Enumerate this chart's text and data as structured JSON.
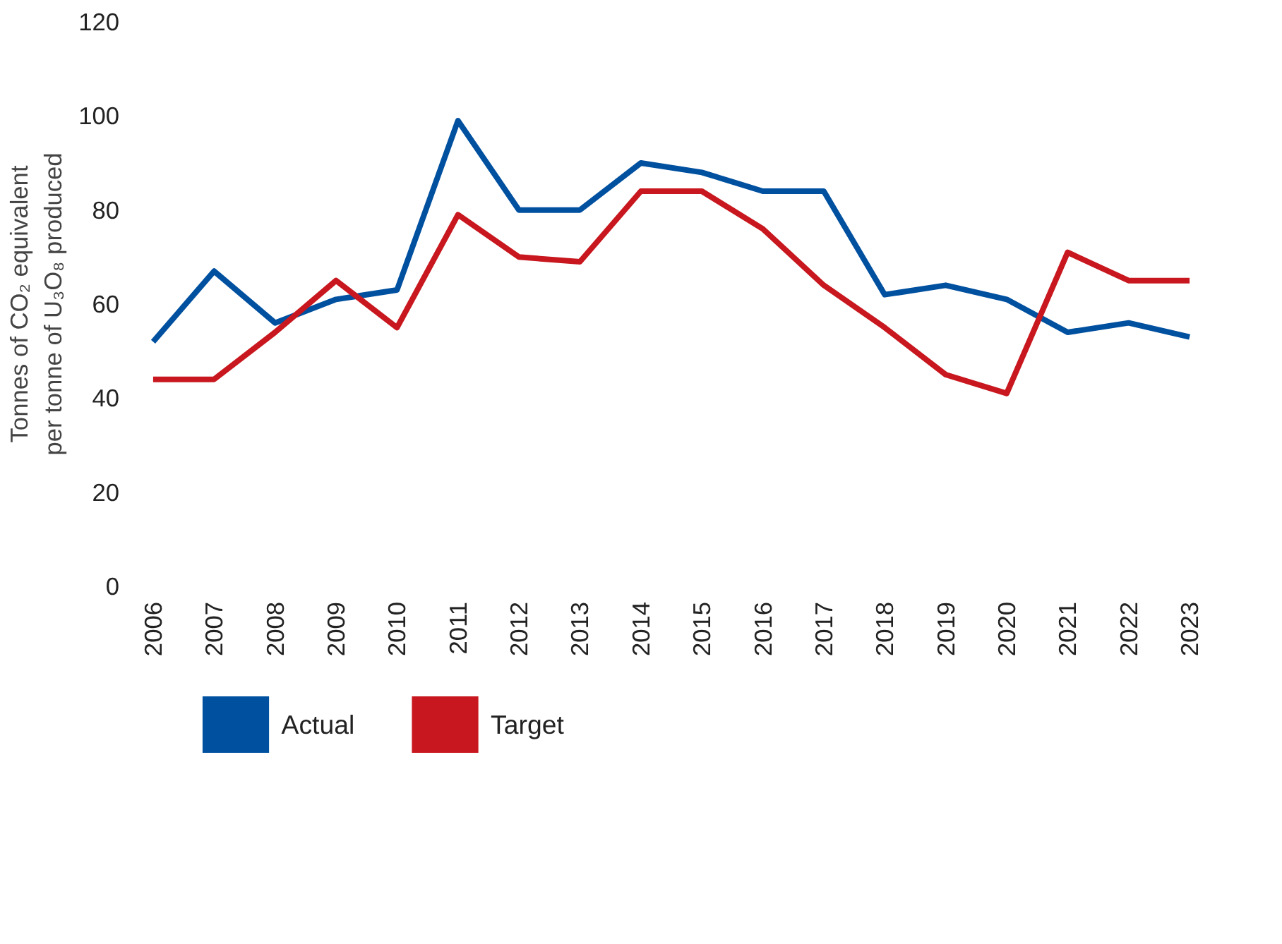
{
  "chart_data": {
    "type": "line",
    "ylabel": "Tonnes of CO₂ equivalent per tonne of U₃O₈ produced",
    "categories": [
      "2006",
      "2007",
      "2008",
      "2009",
      "2010",
      "2011",
      "2012",
      "2013",
      "2014",
      "2015",
      "2016",
      "2017",
      "2018",
      "2019",
      "2020",
      "2021",
      "2022",
      "2023"
    ],
    "series": [
      {
        "name": "Actual",
        "color": "#0050a0",
        "values": [
          52,
          67,
          56,
          61,
          63,
          99,
          80,
          80,
          90,
          88,
          84,
          84,
          62,
          64,
          61,
          54,
          56,
          53
        ]
      },
      {
        "name": "Target",
        "color": "#c8171e",
        "values": [
          44,
          44,
          54,
          65,
          55,
          79,
          70,
          69,
          84,
          84,
          76,
          64,
          55,
          45,
          41,
          71,
          65,
          65
        ]
      }
    ],
    "ylim": [
      0,
      120
    ],
    "yticks": [
      0,
      20,
      40,
      60,
      80,
      100,
      120
    ],
    "grid": false,
    "legend": "bottom",
    "marker": "none",
    "line_style": "solid"
  }
}
